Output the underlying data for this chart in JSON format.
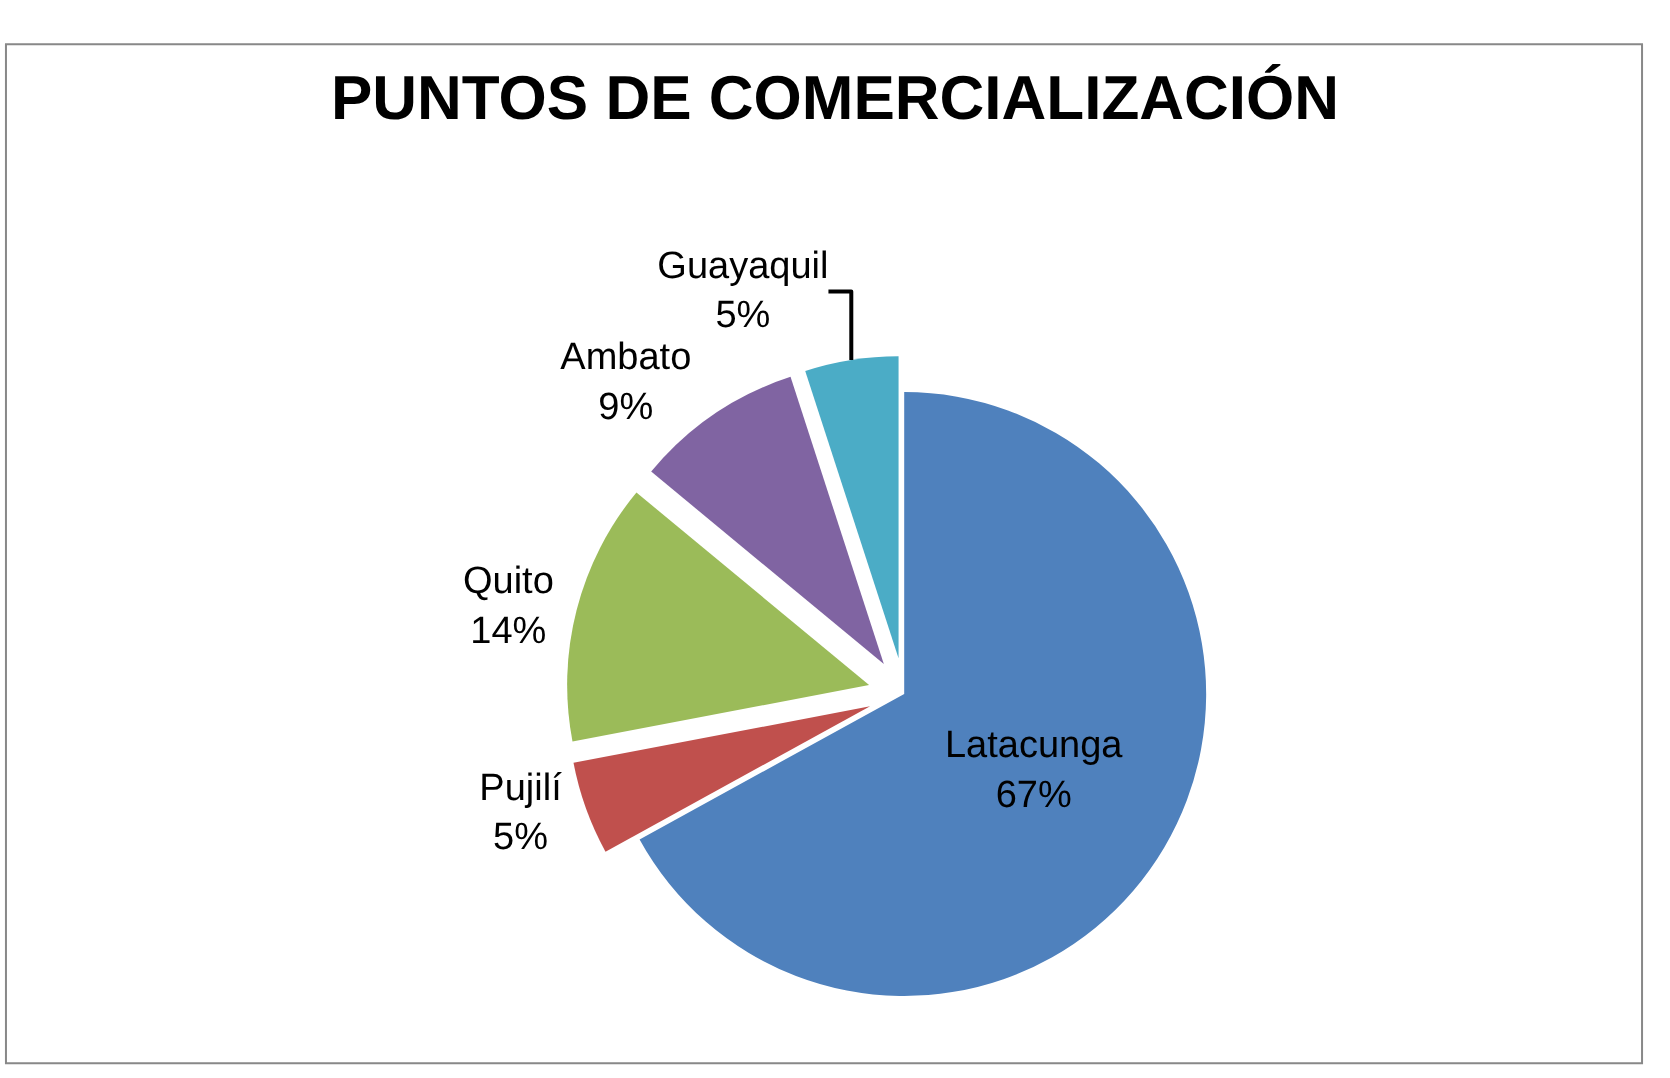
{
  "chart_data": {
    "type": "pie",
    "title": "PUNTOS DE COMERCIALIZACIÓN",
    "categories": [
      "Latacunga",
      "Pujilí",
      "Quito",
      "Ambato",
      "Guayaquil"
    ],
    "values": [
      67,
      5,
      14,
      9,
      5
    ],
    "colors": [
      "#4f81bd",
      "#c0504d",
      "#9bbb59",
      "#8064a2",
      "#4bacc6"
    ],
    "value_labels": [
      "67%",
      "5%",
      "14%",
      "9%",
      "5%"
    ],
    "legend": false
  }
}
